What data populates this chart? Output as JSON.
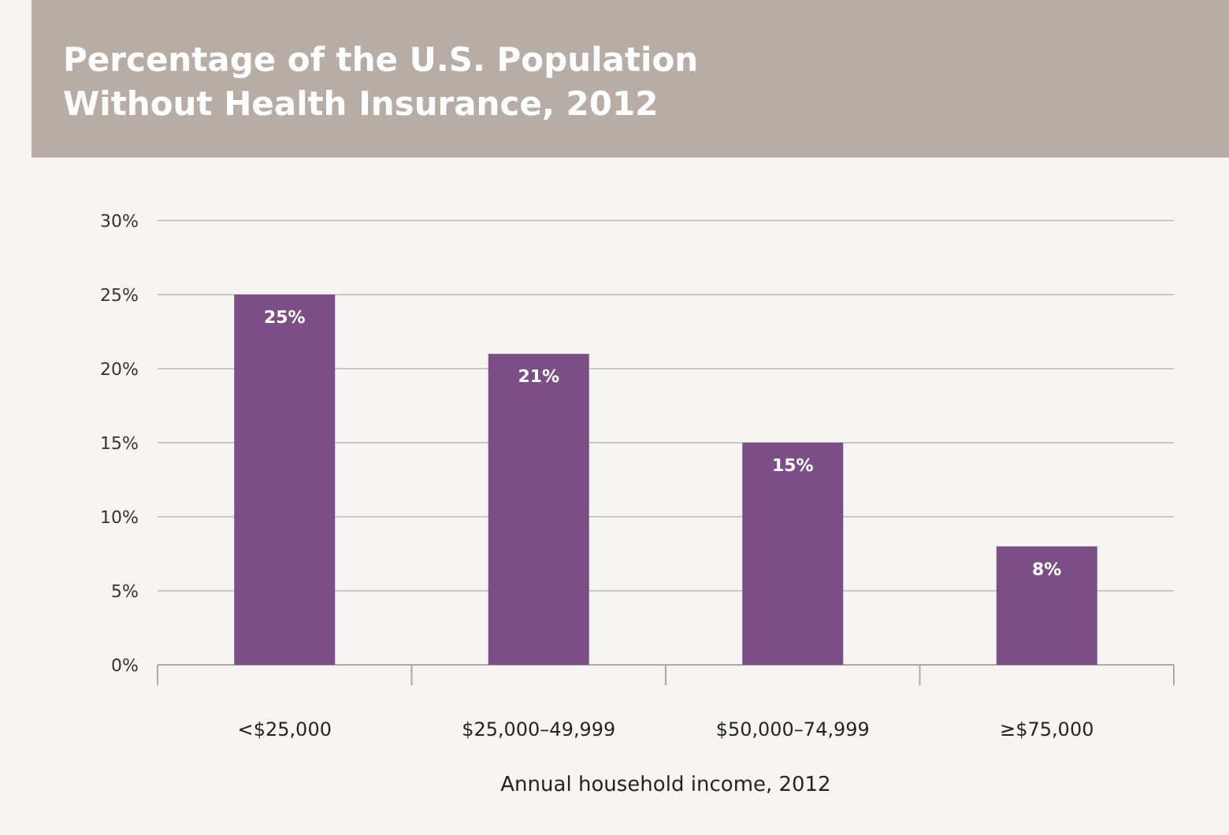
{
  "chart_data": {
    "type": "bar",
    "title": "Percentage of the U.S. Population\nWithout Health Insurance, 2012",
    "xlabel": "Annual household income, 2012",
    "categories": [
      "<$25,000",
      "$25,000–49,999",
      "$50,000–74,999",
      "≥$75,000"
    ],
    "values": [
      25,
      21,
      15,
      8
    ],
    "color": "#7b4f86",
    "ylim": [
      0,
      30
    ],
    "yticks": [
      {
        "value": 0,
        "label": "0%"
      },
      {
        "value": 5,
        "label": "5%"
      },
      {
        "value": 10,
        "label": "10%"
      },
      {
        "value": 15,
        "label": "15%"
      },
      {
        "value": 20,
        "label": "20%"
      },
      {
        "value": 25,
        "label": "25%"
      },
      {
        "value": 30,
        "label": "30%"
      }
    ],
    "grid": "y",
    "value_labels": [
      "25%",
      "21%",
      "15%",
      "8%"
    ]
  }
}
